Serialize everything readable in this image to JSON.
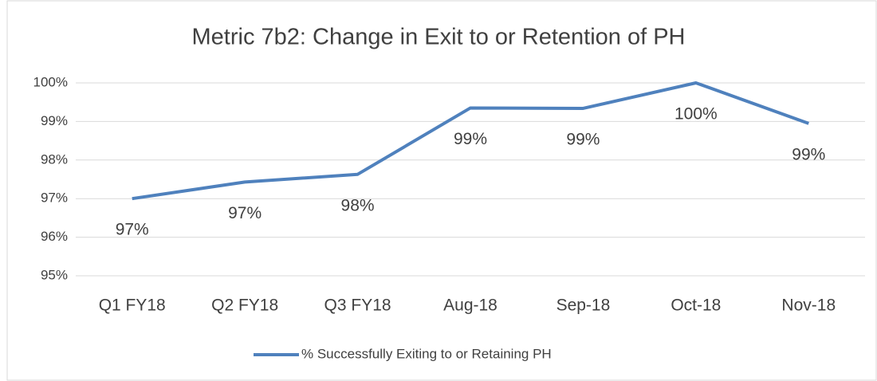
{
  "chart_data": {
    "type": "line",
    "title": "Metric 7b2: Change in Exit to or Retention of PH",
    "categories": [
      "Q1 FY18",
      "Q2 FY18",
      "Q3 FY18",
      "Aug-18",
      "Sep-18",
      "Oct-18",
      "Nov-18"
    ],
    "series": [
      {
        "name": "% Successfully Exiting to or Retaining PH",
        "color": "#4f81bd",
        "values": [
          97.0,
          97.43,
          97.63,
          99.35,
          99.34,
          100.0,
          98.95
        ],
        "value_labels": [
          "97%",
          "97%",
          "98%",
          "99%",
          "99%",
          "100%",
          "99%"
        ]
      }
    ],
    "ylim": [
      95,
      100
    ],
    "yticks": [
      {
        "value": 95,
        "label": "95%"
      },
      {
        "value": 96,
        "label": "96%"
      },
      {
        "value": 97,
        "label": "97%"
      },
      {
        "value": 98,
        "label": "98%"
      },
      {
        "value": 99,
        "label": "99%"
      },
      {
        "value": 100,
        "label": "100%"
      }
    ],
    "grid": true,
    "legend": "bottom"
  }
}
